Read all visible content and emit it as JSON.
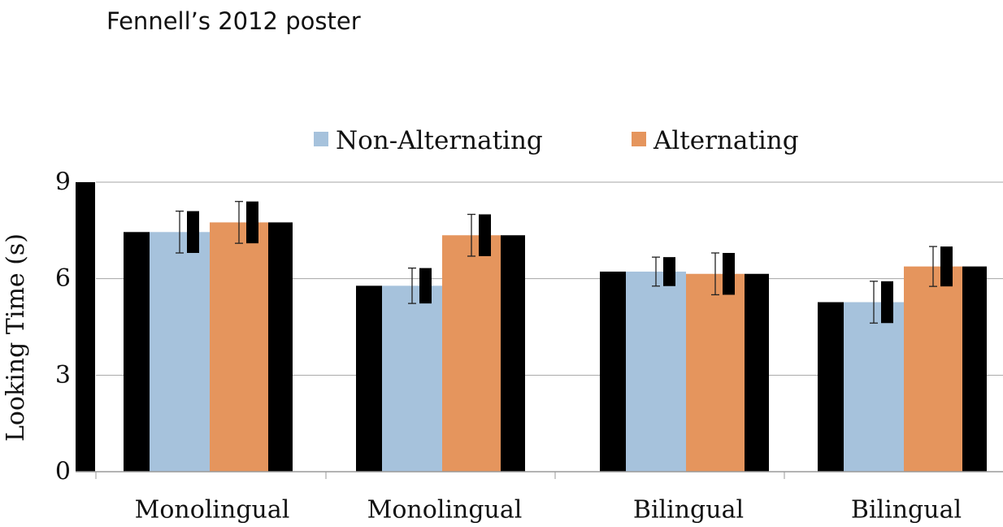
{
  "page": {
    "title": "Fennell’s 2012 poster"
  },
  "chart_data": {
    "type": "bar",
    "title": "",
    "xlabel": "",
    "ylabel": "Looking Time (s)",
    "ylim": [
      0,
      9
    ],
    "y_ticks": [
      0,
      3,
      6,
      9
    ],
    "grid": true,
    "legend_position": "top",
    "categories": [
      "Monolingual",
      "Monolingual",
      "Bilingual",
      "Bilingual"
    ],
    "series": [
      {
        "name": "Non-Alternating",
        "color": "#a6c2dc",
        "values": [
          7.45,
          5.78,
          6.22,
          5.27
        ],
        "error": [
          0.65,
          0.55,
          0.45,
          0.65
        ]
      },
      {
        "name": "Alternating",
        "color": "#e5955d",
        "values": [
          7.75,
          7.35,
          6.15,
          6.38
        ],
        "error": [
          0.65,
          0.65,
          0.65,
          0.62
        ]
      }
    ]
  }
}
